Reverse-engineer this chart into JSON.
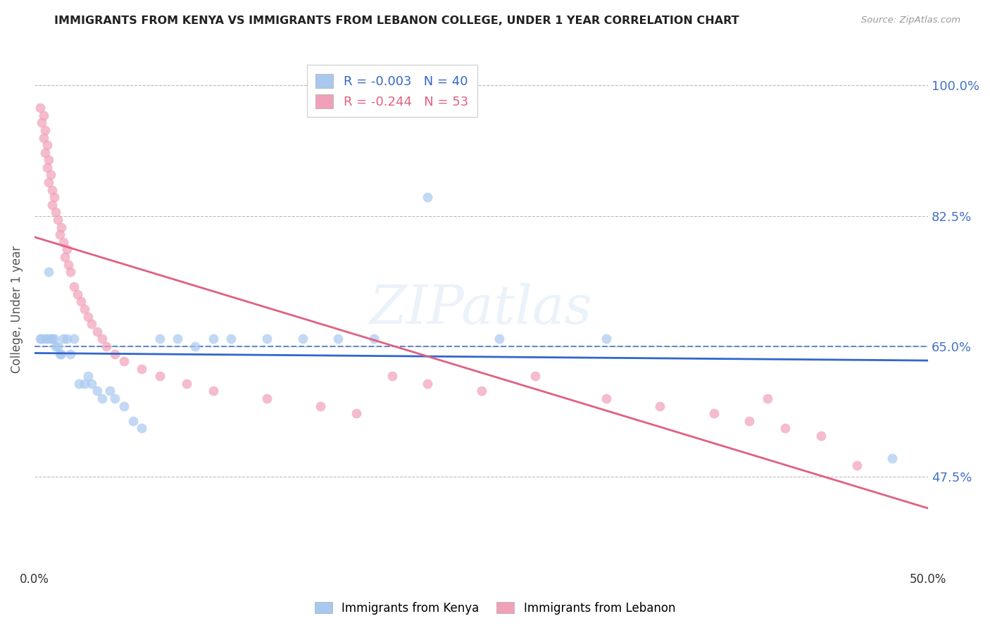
{
  "title": "IMMIGRANTS FROM KENYA VS IMMIGRANTS FROM LEBANON COLLEGE, UNDER 1 YEAR CORRELATION CHART",
  "source": "Source: ZipAtlas.com",
  "ylabel": "College, Under 1 year",
  "xlim": [
    0.0,
    0.5
  ],
  "ylim": [
    0.35,
    1.05
  ],
  "yticks": [
    0.475,
    0.65,
    0.825,
    1.0
  ],
  "ytick_labels": [
    "47.5%",
    "65.0%",
    "82.5%",
    "100.0%"
  ],
  "xticks": [
    0.0,
    0.1,
    0.2,
    0.3,
    0.4,
    0.5
  ],
  "xtick_labels": [
    "0.0%",
    "",
    "",
    "",
    "",
    "50.0%"
  ],
  "kenya_R": "-0.003",
  "kenya_N": "40",
  "lebanon_R": "-0.244",
  "lebanon_N": "53",
  "kenya_color": "#A8C8F0",
  "lebanon_color": "#F0A0B8",
  "kenya_line_color": "#3366CC",
  "lebanon_line_color": "#E06080",
  "avg_line_color": "#4472C4",
  "avg_line_value": 0.65,
  "background_color": "#FFFFFF",
  "grid_color": "#BBBBBB",
  "title_color": "#222222",
  "axis_label_color": "#555555",
  "right_label_color": "#4472C4",
  "watermark": "ZIPatlas",
  "kenya_x": [
    0.003,
    0.004,
    0.006,
    0.007,
    0.008,
    0.009,
    0.01,
    0.011,
    0.012,
    0.013,
    0.014,
    0.015,
    0.016,
    0.018,
    0.02,
    0.022,
    0.025,
    0.028,
    0.03,
    0.032,
    0.035,
    0.038,
    0.042,
    0.045,
    0.05,
    0.055,
    0.06,
    0.07,
    0.08,
    0.09,
    0.1,
    0.11,
    0.13,
    0.15,
    0.17,
    0.19,
    0.22,
    0.26,
    0.32,
    0.48
  ],
  "kenya_y": [
    0.66,
    0.66,
    0.66,
    0.66,
    0.75,
    0.66,
    0.66,
    0.66,
    0.65,
    0.65,
    0.64,
    0.64,
    0.66,
    0.66,
    0.64,
    0.66,
    0.6,
    0.6,
    0.61,
    0.6,
    0.59,
    0.58,
    0.59,
    0.58,
    0.57,
    0.55,
    0.54,
    0.66,
    0.66,
    0.65,
    0.66,
    0.66,
    0.66,
    0.66,
    0.66,
    0.66,
    0.85,
    0.66,
    0.66,
    0.5
  ],
  "lebanon_x": [
    0.003,
    0.004,
    0.005,
    0.005,
    0.006,
    0.006,
    0.007,
    0.007,
    0.008,
    0.008,
    0.009,
    0.01,
    0.01,
    0.011,
    0.012,
    0.013,
    0.014,
    0.015,
    0.016,
    0.017,
    0.018,
    0.019,
    0.02,
    0.022,
    0.024,
    0.026,
    0.028,
    0.03,
    0.032,
    0.035,
    0.038,
    0.04,
    0.045,
    0.05,
    0.06,
    0.07,
    0.085,
    0.1,
    0.13,
    0.16,
    0.18,
    0.2,
    0.22,
    0.25,
    0.28,
    0.32,
    0.35,
    0.38,
    0.4,
    0.41,
    0.42,
    0.44,
    0.46
  ],
  "lebanon_y": [
    0.97,
    0.95,
    0.96,
    0.93,
    0.94,
    0.91,
    0.92,
    0.89,
    0.9,
    0.87,
    0.88,
    0.86,
    0.84,
    0.85,
    0.83,
    0.82,
    0.8,
    0.81,
    0.79,
    0.77,
    0.78,
    0.76,
    0.75,
    0.73,
    0.72,
    0.71,
    0.7,
    0.69,
    0.68,
    0.67,
    0.66,
    0.65,
    0.64,
    0.63,
    0.62,
    0.61,
    0.6,
    0.59,
    0.58,
    0.57,
    0.56,
    0.61,
    0.6,
    0.59,
    0.61,
    0.58,
    0.57,
    0.56,
    0.55,
    0.58,
    0.54,
    0.53,
    0.49
  ]
}
